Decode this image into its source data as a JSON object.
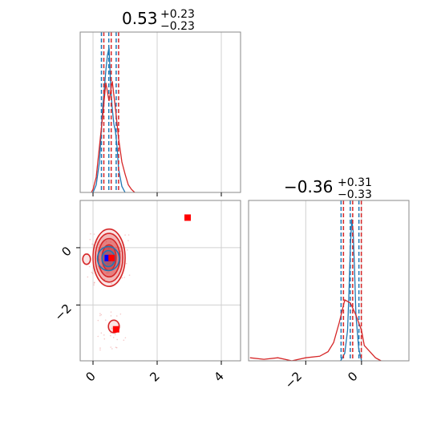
{
  "figure": {
    "colors": {
      "red": "#d62728",
      "blue": "#1f77b4",
      "marker_red": "#ff0000",
      "marker_blue": "#0000ff"
    }
  },
  "chart_data": [
    {
      "type": "histogram",
      "panel": "top-left",
      "title": {
        "main": "0.53",
        "sup": "+0.23",
        "sub": "−0.23"
      },
      "xlim": [
        -0.4,
        4.6
      ],
      "xticks": [
        0,
        2,
        4
      ],
      "tick_labels_shown": false,
      "grid": true,
      "series": [
        {
          "color": "#1f77b4",
          "x": [
            0.0,
            0.1,
            0.2,
            0.3,
            0.4,
            0.45,
            0.5,
            0.55,
            0.6,
            0.65,
            0.7,
            0.75,
            0.8,
            0.9,
            1.0
          ],
          "y": [
            0.0,
            0.05,
            0.2,
            0.55,
            0.8,
            0.9,
            0.95,
            0.7,
            0.55,
            0.45,
            0.4,
            0.3,
            0.15,
            0.04,
            0.0
          ],
          "quantiles": [
            0.3,
            0.53,
            0.76
          ]
        },
        {
          "color": "#d62728",
          "x": [
            -0.05,
            0.0,
            0.1,
            0.2,
            0.3,
            0.4,
            0.5,
            0.6,
            0.7,
            0.8,
            0.9,
            1.0,
            1.1,
            1.2,
            1.3
          ],
          "y": [
            0.0,
            0.02,
            0.1,
            0.3,
            0.5,
            0.72,
            0.6,
            0.73,
            0.55,
            0.35,
            0.2,
            0.12,
            0.05,
            0.02,
            0.0
          ],
          "quantiles": [
            0.3,
            0.53,
            0.76
          ]
        }
      ]
    },
    {
      "type": "histogram",
      "panel": "bottom-right",
      "title": {
        "main": "−0.36",
        "sup": "+0.31",
        "sub": "−0.33"
      },
      "xlim": [
        -4.05,
        1.7
      ],
      "xticks": [
        -2,
        0
      ],
      "xtick_labels": [
        "−2",
        "0"
      ],
      "grid": true,
      "series": [
        {
          "color": "#1f77b4",
          "x": [
            -0.75,
            -0.6,
            -0.5,
            -0.45,
            -0.4,
            -0.35,
            -0.3,
            -0.25,
            -0.2,
            -0.1,
            0.0
          ],
          "y": [
            0.0,
            0.05,
            0.2,
            0.45,
            0.75,
            0.93,
            0.85,
            0.6,
            0.3,
            0.08,
            0.0
          ],
          "quantiles": [
            -0.69,
            -0.36,
            -0.05
          ]
        },
        {
          "color": "#d62728",
          "x": [
            -4.0,
            -3.5,
            -3.0,
            -2.5,
            -2.0,
            -1.5,
            -1.2,
            -1.0,
            -0.8,
            -0.6,
            -0.4,
            -0.2,
            0.0,
            0.1,
            0.3,
            0.5,
            0.7
          ],
          "y": [
            0.02,
            0.01,
            0.02,
            0.0,
            0.02,
            0.03,
            0.06,
            0.12,
            0.25,
            0.4,
            0.38,
            0.3,
            0.2,
            0.1,
            0.06,
            0.02,
            0.0
          ],
          "quantiles": [
            -0.69,
            -0.36,
            -0.05
          ]
        }
      ]
    },
    {
      "type": "scatter",
      "panel": "bottom-left",
      "xlim": [
        -0.4,
        4.6
      ],
      "ylim": [
        -3.95,
        1.65
      ],
      "xticks": [
        0,
        2,
        4
      ],
      "xtick_labels": [
        "0",
        "2",
        "4"
      ],
      "yticks": [
        0,
        -2
      ],
      "ytick_labels": [
        "0",
        "−2"
      ],
      "grid": true,
      "contours": [
        {
          "color": "#d62728",
          "cx": 0.5,
          "cy": -0.35,
          "levels": [
            [
              0.5,
              1.0
            ],
            [
              0.43,
              0.85
            ],
            [
              0.34,
              0.67
            ],
            [
              0.22,
              0.45
            ]
          ]
        },
        {
          "color": "#d62728",
          "cx": -0.2,
          "cy": -0.4,
          "levels": [
            [
              0.12,
              0.18
            ]
          ]
        },
        {
          "color": "#d62728",
          "cx": 0.65,
          "cy": -2.75,
          "levels": [
            [
              0.17,
              0.22
            ]
          ]
        },
        {
          "color": "#1f77b4",
          "cx": 0.48,
          "cy": -0.38,
          "levels": [
            [
              0.34,
              0.42
            ],
            [
              0.2,
              0.28
            ]
          ]
        }
      ],
      "markers": [
        {
          "x": 2.95,
          "y": 1.05,
          "color": "#ff0000"
        },
        {
          "x": 0.72,
          "y": -2.85,
          "color": "#ff0000"
        },
        {
          "x": 0.46,
          "y": -0.36,
          "color": "#0000ff"
        },
        {
          "x": 0.58,
          "y": -0.36,
          "color": "#ff0000"
        }
      ]
    }
  ]
}
